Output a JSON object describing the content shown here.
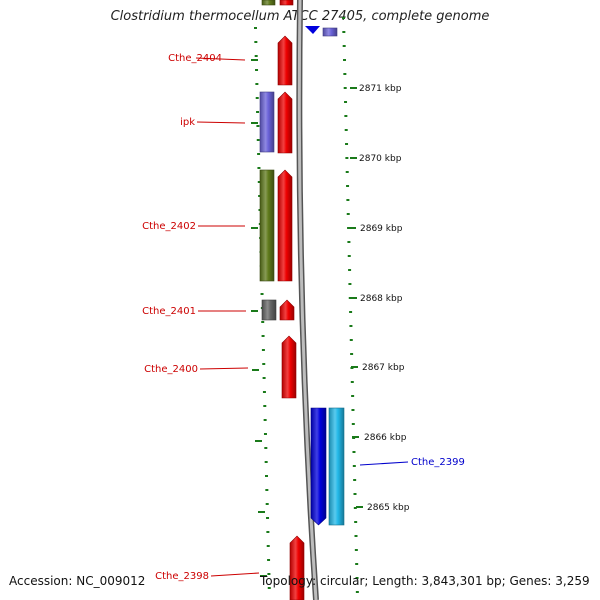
{
  "title": "Clostridium thermocellum ATCC 27405, complete genome",
  "footer": {
    "accession": "Accession: NC_009012",
    "summary": "Topology: circular; Length: 3,843,301 bp; Genes: 3,259"
  },
  "colors": {
    "red_gene": "#ee0000",
    "blue_gene": "#0000dd",
    "cyan_gene": "#22b8e8",
    "purple_gene": "#6a62d8",
    "olive_gene": "#5f7a1c",
    "gray_gene": "#666666",
    "tick_green": "#1a7a1a",
    "left_label": "#cc0000",
    "right_label": "#0000cc",
    "backbone": "#808080"
  },
  "scale_labels": [
    "2871 kbp",
    "2870 kbp",
    "2869 kbp",
    "2868 kbp",
    "2867 kbp",
    "2866 kbp",
    "2865 kbp"
  ],
  "gene_labels_left": [
    "Cthe_2404",
    "ipk",
    "Cthe_2402",
    "Cthe_2401",
    "Cthe_2400",
    "Cthe_2398"
  ],
  "gene_labels_right": [
    "Cthe_2399"
  ]
}
